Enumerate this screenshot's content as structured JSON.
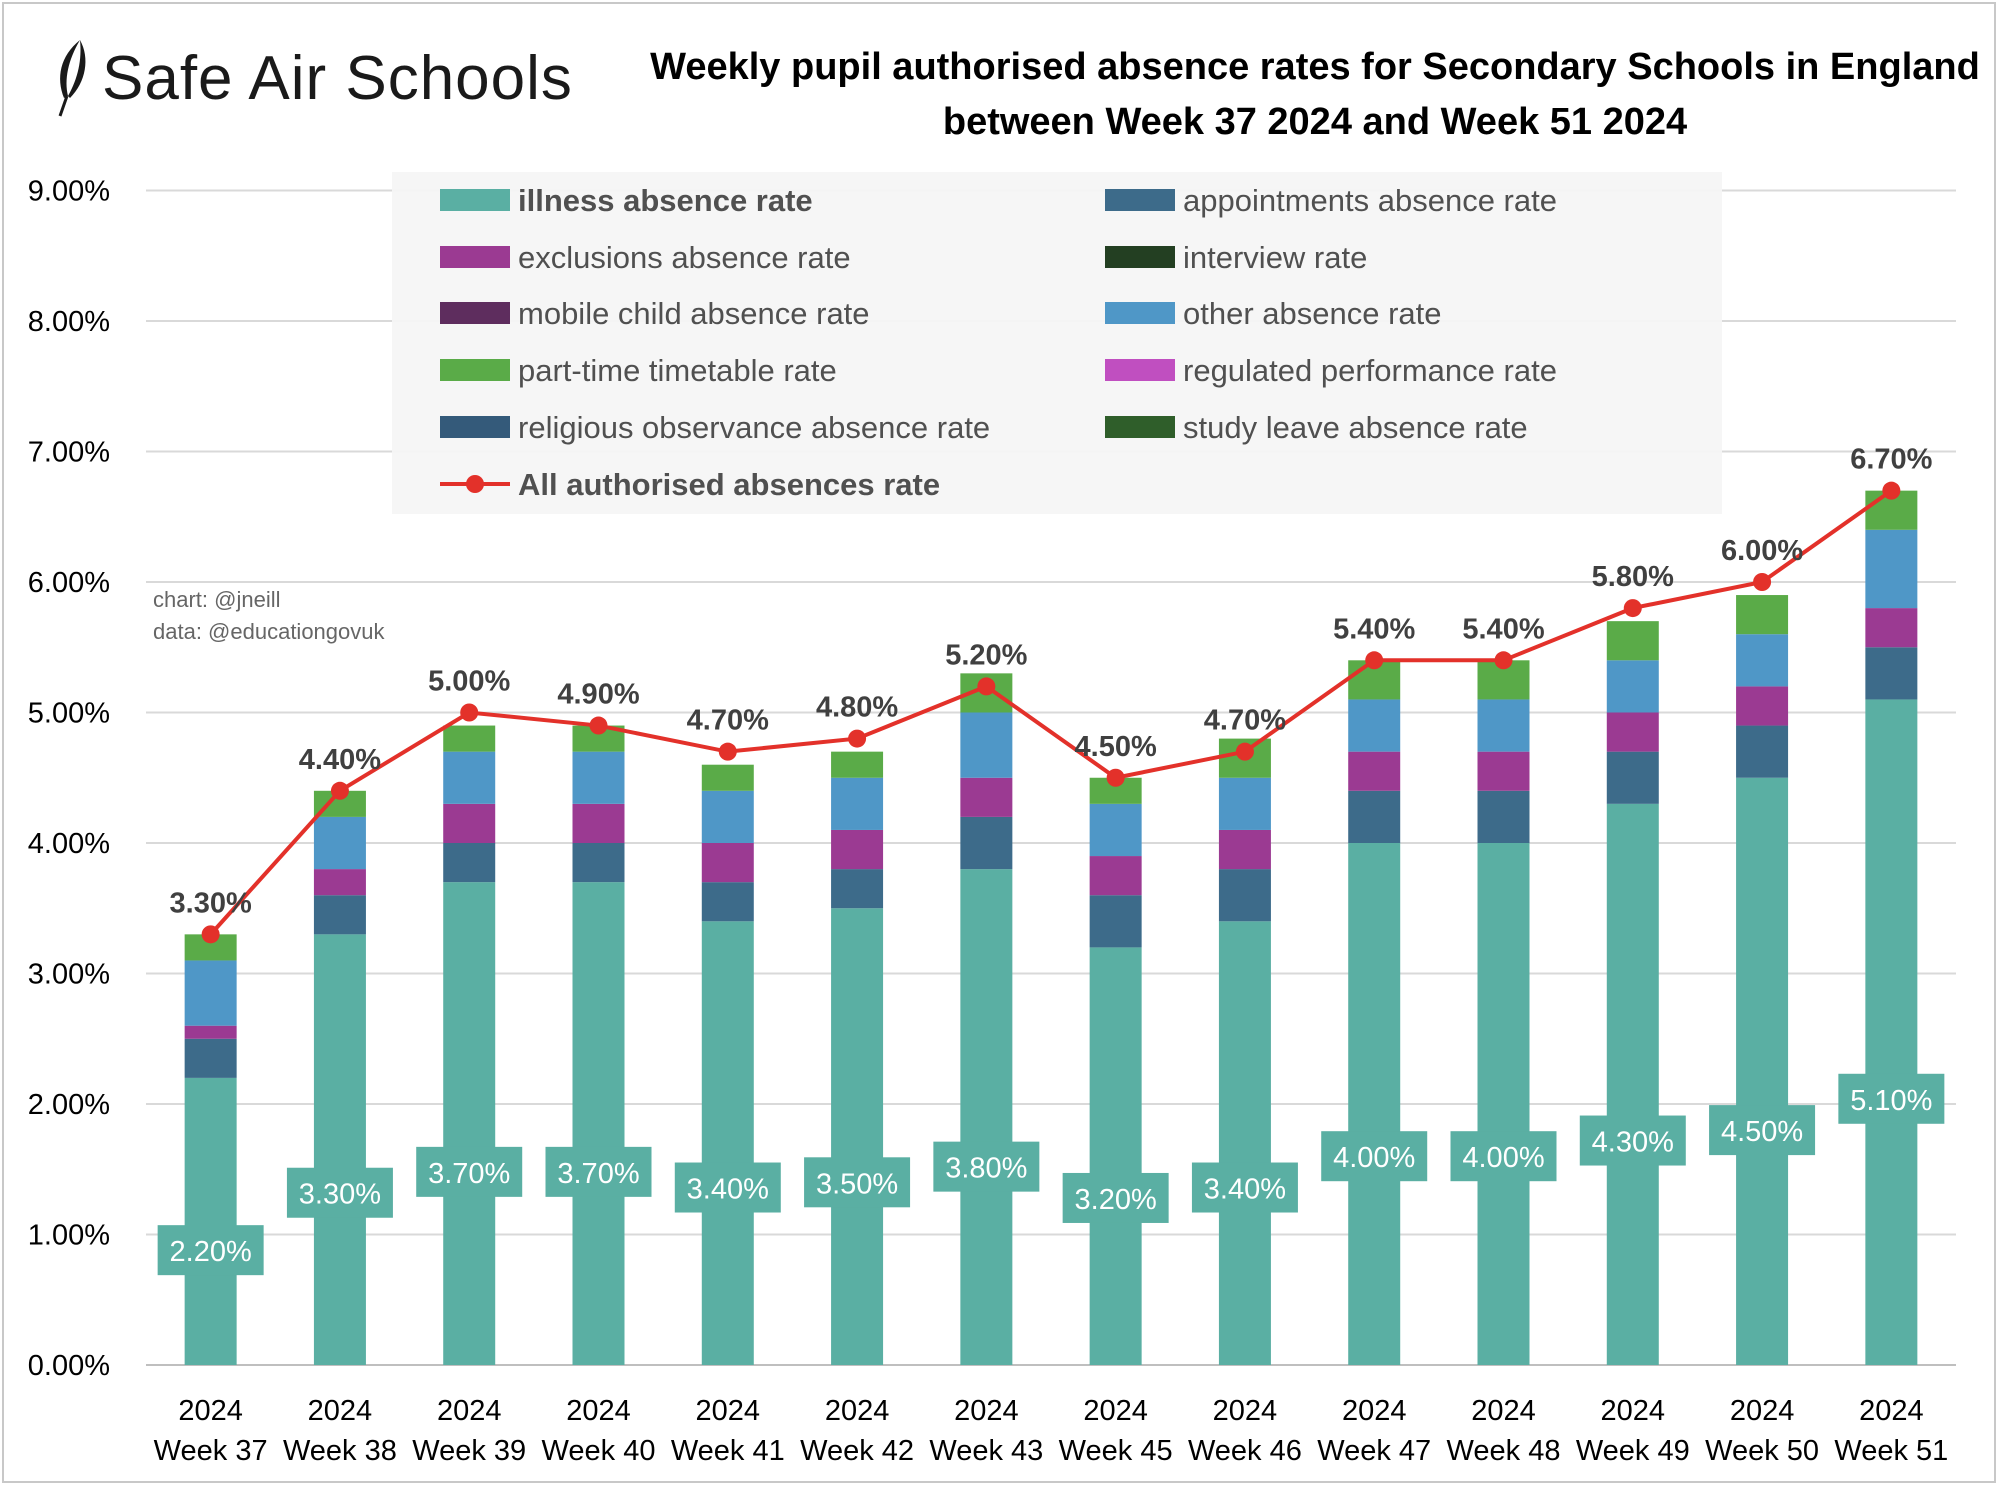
{
  "brand": {
    "name": "Safe Air Schools",
    "icon": "feather-icon"
  },
  "title_line1": "Weekly pupil authorised absence rates for Secondary Schools in England",
  "title_line2": "between Week 37 2024 and Week 51 2024",
  "credits": {
    "chart": "chart: @jneill",
    "data": "data: @educationgovuk"
  },
  "chart_data": {
    "type": "bar",
    "stacked": true,
    "categories": [
      [
        "2024",
        "Week 37"
      ],
      [
        "2024",
        "Week 38"
      ],
      [
        "2024",
        "Week 39"
      ],
      [
        "2024",
        "Week 40"
      ],
      [
        "2024",
        "Week 41"
      ],
      [
        "2024",
        "Week 42"
      ],
      [
        "2024",
        "Week 43"
      ],
      [
        "2024",
        "Week 45"
      ],
      [
        "2024",
        "Week 46"
      ],
      [
        "2024",
        "Week 47"
      ],
      [
        "2024",
        "Week 48"
      ],
      [
        "2024",
        "Week 49"
      ],
      [
        "2024",
        "Week 50"
      ],
      [
        "2024",
        "Week 51"
      ]
    ],
    "ylim": [
      0,
      9
    ],
    "yticks": [
      0,
      1,
      2,
      3,
      4,
      5,
      6,
      7,
      8,
      9
    ],
    "ytick_labels": [
      "0.00%",
      "1.00%",
      "2.00%",
      "3.00%",
      "4.00%",
      "5.00%",
      "6.00%",
      "7.00%",
      "8.00%",
      "9.00%"
    ],
    "grid": true,
    "legend_position": "top",
    "series": [
      {
        "name": "illness absence rate",
        "color": "#5aafa3",
        "bold": true,
        "values": [
          2.2,
          3.3,
          3.7,
          3.7,
          3.4,
          3.5,
          3.8,
          3.2,
          3.4,
          4.0,
          4.0,
          4.3,
          4.5,
          5.1
        ],
        "labels": [
          "2.20%",
          "3.30%",
          "3.70%",
          "3.70%",
          "3.40%",
          "3.50%",
          "3.80%",
          "3.20%",
          "3.40%",
          "4.00%",
          "4.00%",
          "4.30%",
          "4.50%",
          "5.10%"
        ]
      },
      {
        "name": "appointments absence rate",
        "color": "#3d6b8a",
        "values": [
          0.3,
          0.3,
          0.3,
          0.3,
          0.3,
          0.3,
          0.4,
          0.4,
          0.4,
          0.4,
          0.4,
          0.4,
          0.4,
          0.4
        ]
      },
      {
        "name": "exclusions absence rate",
        "color": "#9b3a92",
        "values": [
          0.1,
          0.2,
          0.3,
          0.3,
          0.3,
          0.3,
          0.3,
          0.3,
          0.3,
          0.3,
          0.3,
          0.3,
          0.3,
          0.3
        ]
      },
      {
        "name": "interview rate",
        "color": "#233f22",
        "values": [
          0,
          0,
          0,
          0,
          0,
          0,
          0,
          0,
          0,
          0,
          0,
          0,
          0,
          0
        ]
      },
      {
        "name": "mobile child absence rate",
        "color": "#5e2d5e",
        "values": [
          0,
          0,
          0,
          0,
          0,
          0,
          0,
          0,
          0,
          0,
          0,
          0,
          0,
          0
        ]
      },
      {
        "name": "other absence rate",
        "color": "#4f97c7",
        "values": [
          0.5,
          0.4,
          0.4,
          0.4,
          0.4,
          0.4,
          0.5,
          0.4,
          0.4,
          0.4,
          0.4,
          0.4,
          0.4,
          0.6
        ]
      },
      {
        "name": "part-time timetable rate",
        "color": "#5aab48",
        "values": [
          0.2,
          0.2,
          0.2,
          0.2,
          0.2,
          0.2,
          0.3,
          0.2,
          0.3,
          0.3,
          0.3,
          0.3,
          0.3,
          0.3
        ]
      },
      {
        "name": "regulated performance rate",
        "color": "#c04fc0",
        "values": [
          0,
          0,
          0,
          0,
          0,
          0,
          0,
          0,
          0,
          0,
          0,
          0,
          0,
          0
        ]
      },
      {
        "name": "religious observance absence rate",
        "color": "#345a7a",
        "values": [
          0,
          0,
          0,
          0,
          0,
          0,
          0,
          0,
          0,
          0,
          0,
          0,
          0,
          0
        ]
      },
      {
        "name": "study leave absence rate",
        "color": "#2f5e2a",
        "values": [
          0,
          0,
          0,
          0,
          0,
          0,
          0,
          0,
          0,
          0,
          0,
          0,
          0,
          0
        ]
      }
    ],
    "line": {
      "name": "All authorised absences rate",
      "color": "#e3312a",
      "bold": true,
      "values": [
        3.3,
        4.4,
        5.0,
        4.9,
        4.7,
        4.8,
        5.2,
        4.5,
        4.7,
        5.4,
        5.4,
        5.8,
        6.0,
        6.7
      ],
      "labels": [
        "3.30%",
        "4.40%",
        "5.00%",
        "4.90%",
        "4.70%",
        "4.80%",
        "5.20%",
        "4.50%",
        "4.70%",
        "5.40%",
        "5.40%",
        "5.80%",
        "6.00%",
        "6.70%"
      ]
    }
  }
}
